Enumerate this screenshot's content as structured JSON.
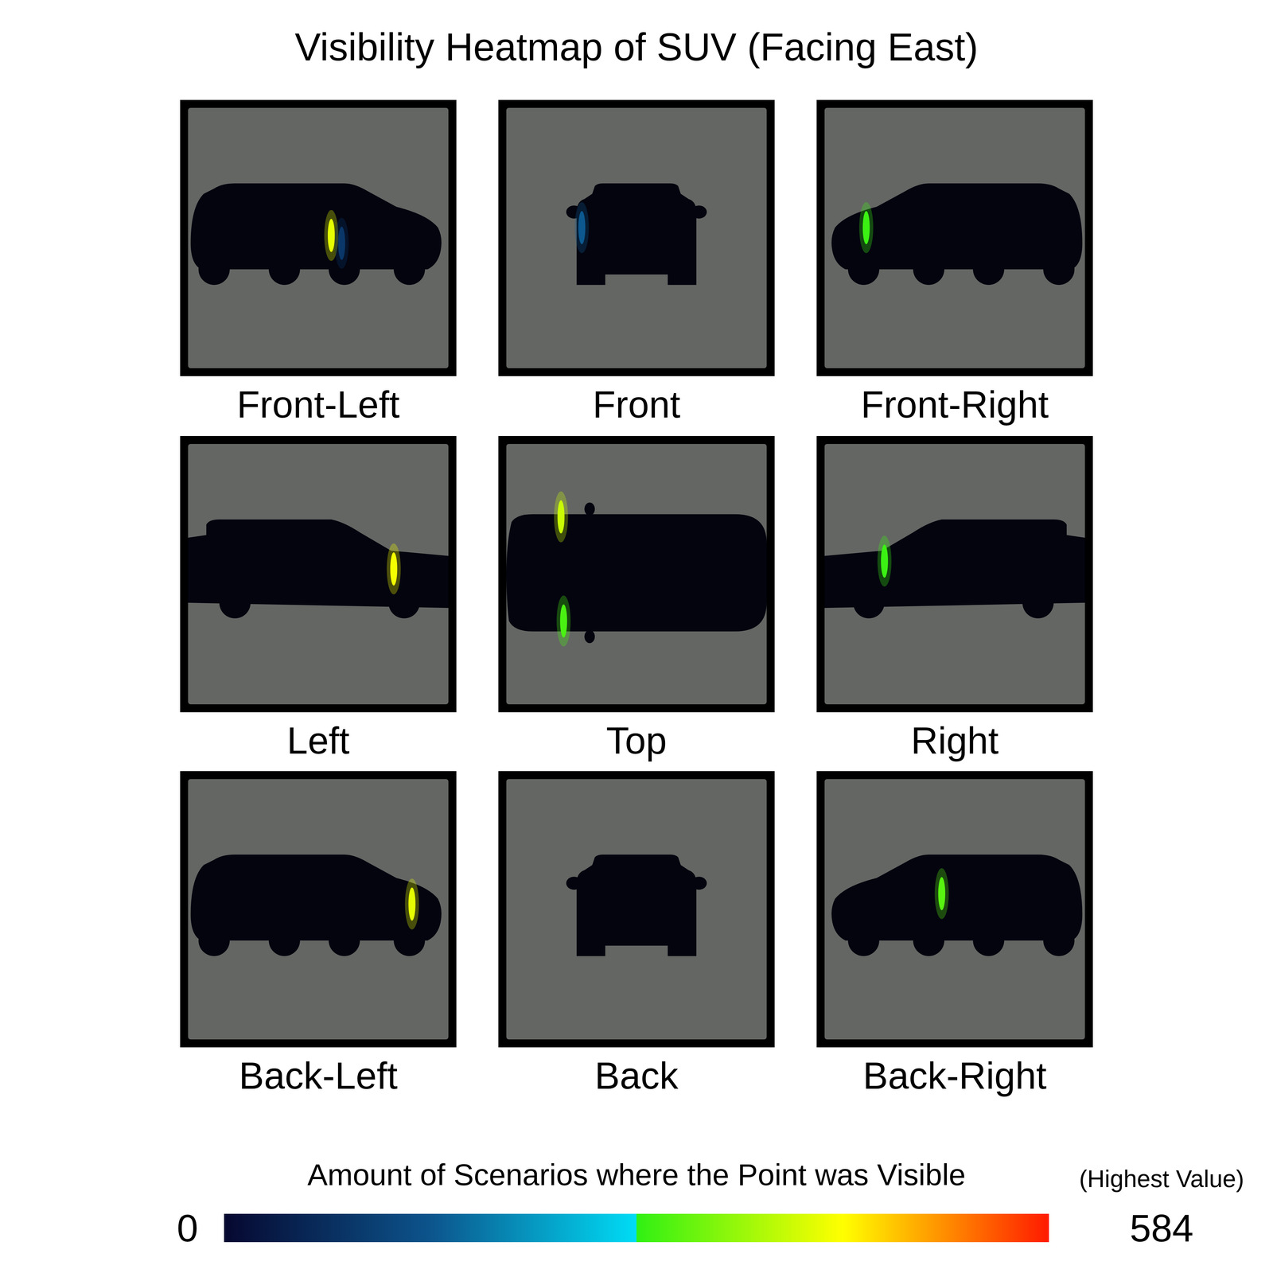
{
  "chart_data": {
    "type": "heatmap",
    "title": "Visibility Heatmap of SUV (Facing East)",
    "panels": [
      {
        "label": "Front-Left",
        "hotspots": [
          {
            "x": 0.55,
            "y": 0.49,
            "value": 420
          },
          {
            "x": 0.59,
            "y": 0.52,
            "value": 90
          }
        ]
      },
      {
        "label": "Front",
        "hotspots": [
          {
            "x": 0.29,
            "y": 0.46,
            "value": 150
          }
        ]
      },
      {
        "label": "Front-Right",
        "hotspots": [
          {
            "x": 0.16,
            "y": 0.46,
            "value": 300
          }
        ]
      },
      {
        "label": "Left",
        "hotspots": [
          {
            "x": 0.79,
            "y": 0.48,
            "value": 430
          }
        ]
      },
      {
        "label": "Top",
        "hotspots": [
          {
            "x": 0.21,
            "y": 0.28,
            "value": 400
          },
          {
            "x": 0.22,
            "y": 0.68,
            "value": 310
          }
        ]
      },
      {
        "label": "Right",
        "hotspots": [
          {
            "x": 0.23,
            "y": 0.45,
            "value": 300
          }
        ]
      },
      {
        "label": "Back-Left",
        "hotspots": [
          {
            "x": 0.86,
            "y": 0.48,
            "value": 420
          }
        ]
      },
      {
        "label": "Back",
        "hotspots": []
      },
      {
        "label": "Back-Right",
        "hotspots": [
          {
            "x": 0.45,
            "y": 0.44,
            "value": 320
          }
        ]
      }
    ],
    "colorbar": {
      "label": "Amount of Scenarios where the Point was Visible",
      "range": [
        0,
        584
      ],
      "ticks": [
        0,
        584
      ],
      "note": "(Highest Value)"
    }
  }
}
